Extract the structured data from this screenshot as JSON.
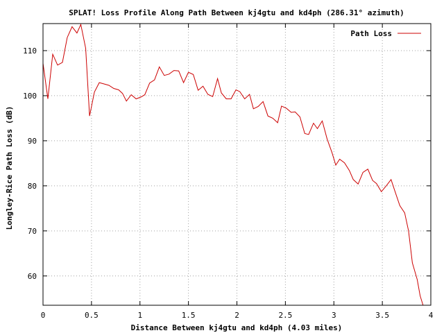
{
  "chart_data": {
    "type": "line",
    "title": "SPLAT! Loss Profile Along Path Between kj4gtu and kd4ph (286.31° azimuth)",
    "xlabel": "Distance Between kj4gtu and kd4ph (4.03 miles)",
    "ylabel": "Longley-Rice Path Loss (dB)",
    "xlim": [
      0,
      4
    ],
    "ylim": [
      53.5,
      116
    ],
    "x_ticks": [
      0,
      0.5,
      1,
      1.5,
      2,
      2.5,
      3,
      3.5,
      4
    ],
    "x_tick_labels": [
      "0",
      "0.5",
      "1",
      "1.5",
      "2",
      "2.5",
      "3",
      "3.5",
      "4"
    ],
    "y_ticks": [
      60,
      70,
      80,
      90,
      100,
      110
    ],
    "y_tick_labels": [
      "60",
      "70",
      "80",
      "90",
      "100",
      "110"
    ],
    "grid": true,
    "legend_position": "top-right",
    "series": [
      {
        "name": "Path Loss",
        "color": "#cc0000",
        "points": [
          [
            0.0,
            107.2
          ],
          [
            0.05,
            99.3
          ],
          [
            0.1,
            109.2
          ],
          [
            0.15,
            106.8
          ],
          [
            0.2,
            107.4
          ],
          [
            0.25,
            112.9
          ],
          [
            0.3,
            115.3
          ],
          [
            0.35,
            113.9
          ],
          [
            0.39,
            115.8
          ],
          [
            0.44,
            110.5
          ],
          [
            0.48,
            95.5
          ],
          [
            0.53,
            100.8
          ],
          [
            0.58,
            102.9
          ],
          [
            0.63,
            102.6
          ],
          [
            0.68,
            102.3
          ],
          [
            0.73,
            101.6
          ],
          [
            0.78,
            101.3
          ],
          [
            0.82,
            100.5
          ],
          [
            0.86,
            98.8
          ],
          [
            0.91,
            100.2
          ],
          [
            0.96,
            99.3
          ],
          [
            1.01,
            99.7
          ],
          [
            1.05,
            100.2
          ],
          [
            1.1,
            102.8
          ],
          [
            1.15,
            103.5
          ],
          [
            1.2,
            106.4
          ],
          [
            1.25,
            104.5
          ],
          [
            1.3,
            104.8
          ],
          [
            1.35,
            105.6
          ],
          [
            1.4,
            105.5
          ],
          [
            1.45,
            102.9
          ],
          [
            1.5,
            105.2
          ],
          [
            1.55,
            104.7
          ],
          [
            1.6,
            101.2
          ],
          [
            1.65,
            102.1
          ],
          [
            1.7,
            100.3
          ],
          [
            1.75,
            99.8
          ],
          [
            1.8,
            103.8
          ],
          [
            1.84,
            100.6
          ],
          [
            1.89,
            99.3
          ],
          [
            1.94,
            99.3
          ],
          [
            1.99,
            101.3
          ],
          [
            2.03,
            100.9
          ],
          [
            2.08,
            99.3
          ],
          [
            2.13,
            100.3
          ],
          [
            2.17,
            97.1
          ],
          [
            2.22,
            97.6
          ],
          [
            2.27,
            98.7
          ],
          [
            2.32,
            95.5
          ],
          [
            2.37,
            95.0
          ],
          [
            2.42,
            94.0
          ],
          [
            2.46,
            97.7
          ],
          [
            2.51,
            97.2
          ],
          [
            2.56,
            96.3
          ],
          [
            2.6,
            96.4
          ],
          [
            2.65,
            95.3
          ],
          [
            2.7,
            91.6
          ],
          [
            2.74,
            91.4
          ],
          [
            2.79,
            93.9
          ],
          [
            2.83,
            92.7
          ],
          [
            2.88,
            94.4
          ],
          [
            2.93,
            90.4
          ],
          [
            2.98,
            87.4
          ],
          [
            3.02,
            84.6
          ],
          [
            3.06,
            85.9
          ],
          [
            3.11,
            85.1
          ],
          [
            3.16,
            83.4
          ],
          [
            3.2,
            81.4
          ],
          [
            3.25,
            80.4
          ],
          [
            3.3,
            83.0
          ],
          [
            3.35,
            83.7
          ],
          [
            3.4,
            81.2
          ],
          [
            3.44,
            80.5
          ],
          [
            3.49,
            78.7
          ],
          [
            3.54,
            80.0
          ],
          [
            3.59,
            81.4
          ],
          [
            3.63,
            78.8
          ],
          [
            3.68,
            75.6
          ],
          [
            3.73,
            74.0
          ],
          [
            3.77,
            70.0
          ],
          [
            3.81,
            62.9
          ],
          [
            3.86,
            59.2
          ],
          [
            3.89,
            55.6
          ],
          [
            3.92,
            53.5
          ]
        ]
      }
    ]
  }
}
